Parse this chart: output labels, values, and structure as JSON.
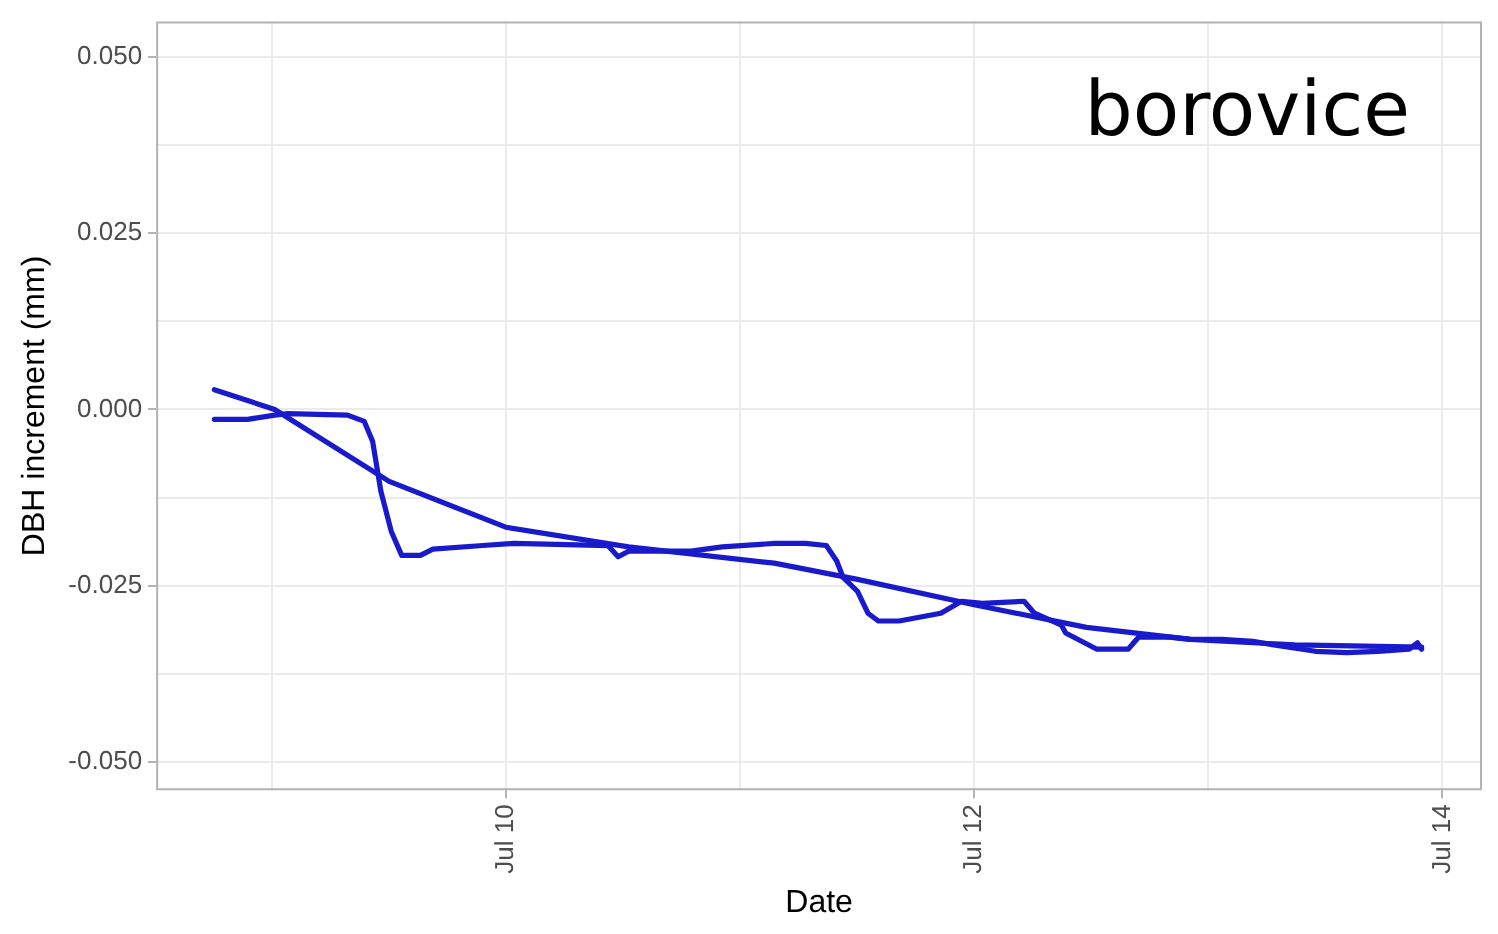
{
  "chart_data": {
    "type": "line",
    "xlabel": "Date",
    "ylabel": "DBH increment (mm)",
    "annotations": [
      "borovice"
    ],
    "xlim": [
      "--07-08T12:10",
      "--07-14T04:03"
    ],
    "xticks": [
      {
        "value": "--07-09",
        "label": null
      },
      {
        "value": "--07-10",
        "label": "Jul 10"
      },
      {
        "value": "--07-11",
        "label": null
      },
      {
        "value": "--07-12",
        "label": "Jul 12"
      },
      {
        "value": "--07-13",
        "label": null
      },
      {
        "value": "--07-14",
        "label": "Jul 14"
      }
    ],
    "ylim": [
      -0.054,
      0.055
    ],
    "yticks": [
      {
        "value": -0.05,
        "label": "-0.050"
      },
      {
        "value": -0.0375,
        "label": null
      },
      {
        "value": -0.025,
        "label": "-0.025"
      },
      {
        "value": -0.0125,
        "label": null
      },
      {
        "value": 0,
        "label": "0.000"
      },
      {
        "value": 0.0125,
        "label": null
      },
      {
        "value": 0.025,
        "label": "0.025"
      },
      {
        "value": 0.0375,
        "label": null
      },
      {
        "value": 0.05,
        "label": "0.050"
      }
    ],
    "grid": true,
    "marker": "none",
    "line_style": "solid",
    "series": [
      {
        "color": "#1a1acd",
        "x": [
          "--07-08T18:08",
          "--07-08T21:33",
          "--07-09T00:19",
          "--07-09T01:40",
          "--07-09T07:47",
          "--07-09T09:30",
          "--07-09T10:21",
          "--07-09T11:12",
          "--07-09T12:16",
          "--07-09T13:20",
          "--07-09T15:15",
          "--07-09T16:32",
          "--07-09T21:39",
          "--07-10T00:51",
          "--07-10T10:28",
          "--07-10T11:31",
          "--07-10T12:35",
          "--07-10T18:59",
          "--07-10T22:11",
          "--07-11T03:31",
          "--07-11T06:43",
          "--07-11T08:51",
          "--07-11T09:55",
          "--07-11T10:34",
          "--07-11T12:03",
          "--07-11T13:07",
          "--07-11T14:11",
          "--07-11T16:19",
          "--07-11T20:35",
          "--07-11T22:43",
          "--07-12T00:51",
          "--07-12T05:07",
          "--07-12T06:11",
          "--07-12T08:57",
          "--07-12T09:23",
          "--07-12T12:35",
          "--07-12T15:47",
          "--07-12T16:51",
          "--07-12T20:03",
          "--07-12T22:11",
          "--07-13T01:23",
          "--07-13T04:35",
          "--07-13T06:43",
          "--07-13T10:59",
          "--07-13T14:11",
          "--07-13T17:23",
          "--07-13T20:35",
          "--07-13T21:26",
          "--07-13T21:52"
        ],
        "values": [
          -0.0014,
          -0.0014,
          -0.0008,
          -0.0006,
          -0.0008,
          -0.0017,
          -0.0045,
          -0.0116,
          -0.0173,
          -0.0207,
          -0.0207,
          -0.0198,
          -0.0193,
          -0.019,
          -0.0193,
          -0.0209,
          -0.0201,
          -0.0201,
          -0.0195,
          -0.019,
          -0.019,
          -0.0193,
          -0.0215,
          -0.0238,
          -0.0258,
          -0.0289,
          -0.03,
          -0.03,
          -0.0289,
          -0.0272,
          -0.0275,
          -0.0272,
          -0.0289,
          -0.0306,
          -0.0317,
          -0.034,
          -0.034,
          -0.0323,
          -0.0323,
          -0.0326,
          -0.0326,
          -0.0329,
          -0.0334,
          -0.0343,
          -0.0345,
          -0.0343,
          -0.034,
          -0.0331,
          -0.034
        ]
      },
      {
        "color": "#1a1acd",
        "x": [
          "--07-08T18:08",
          "--07-09T00:19",
          "--07-09T12:03",
          "--07-10T00:00",
          "--07-10T12:35",
          "--07-11T03:31",
          "--07-11T12:03",
          "--07-12T00:00",
          "--07-12T11:31",
          "--07-12T22:11",
          "--07-13T08:51",
          "--07-13T21:52"
        ],
        "values": [
          0.0028,
          0,
          -0.0102,
          -0.0167,
          -0.0195,
          -0.0218,
          -0.0241,
          -0.0277,
          -0.0309,
          -0.0326,
          -0.0334,
          -0.0337
        ]
      }
    ]
  }
}
